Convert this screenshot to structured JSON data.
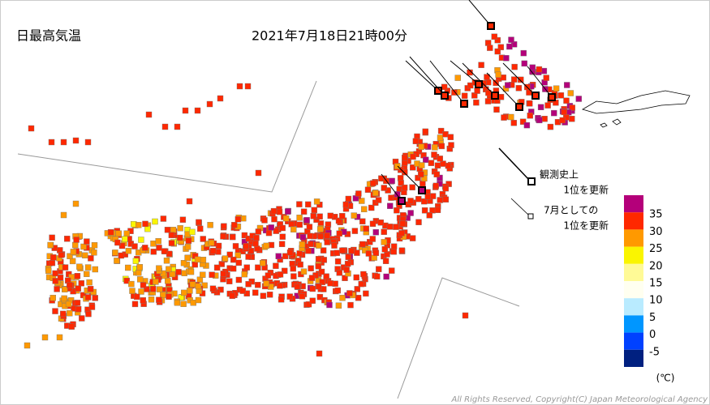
{
  "header": {
    "title": "日最高気温",
    "datetime": "2021年7月18日21時00分"
  },
  "notes": {
    "record_all": [
      "観測史上",
      "1位を更新"
    ],
    "record_month": [
      "7月としての",
      "1位を更新"
    ]
  },
  "scale": {
    "colors": [
      "#b4007a",
      "#ff2800",
      "#ff9900",
      "#faf500",
      "#fffa96",
      "#fffff0",
      "#b9ebff",
      "#0096ff",
      "#0041ff",
      "#002080"
    ],
    "labels": [
      "35",
      "30",
      "25",
      "20",
      "15",
      "10",
      "5",
      "0",
      "-5"
    ],
    "unit": "(℃)"
  },
  "footer": {
    "copyright": "All Rights Reserved, Copyright(C) Japan Meteorological Agency"
  }
}
